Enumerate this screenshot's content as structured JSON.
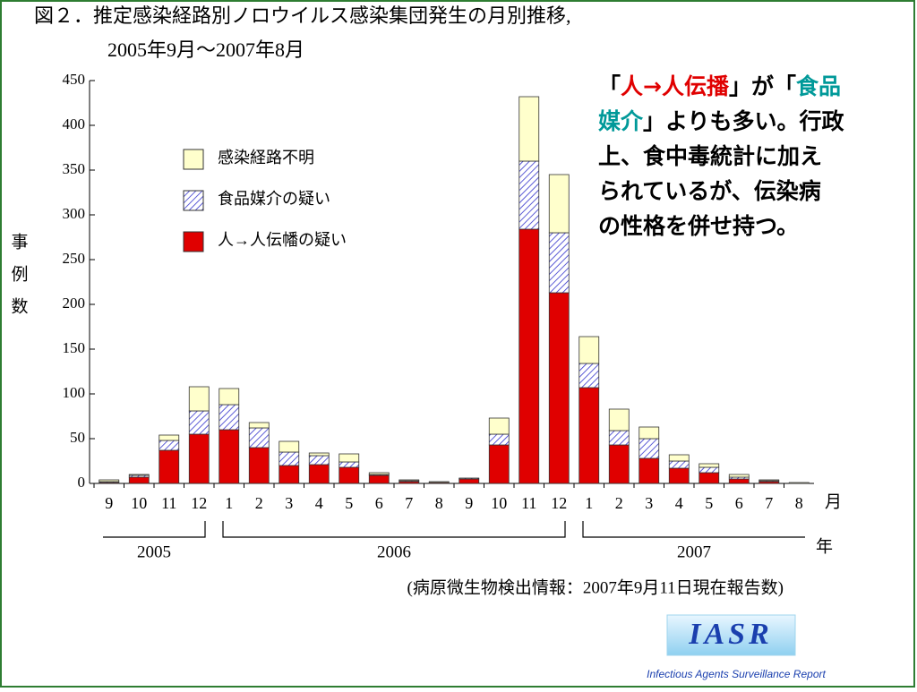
{
  "chart_data": {
    "type": "stacked_bar",
    "title": "図２．推定感染経路別ノロウイルス感染集団発生の月別推移,",
    "subtitle": "2005年9月～2007年8月",
    "y_label": "事例数",
    "x_unit": "月",
    "year_unit": "年",
    "years": [
      "2005",
      "2006",
      "2007"
    ],
    "source": "(病原微生物検出情報：2007年9月11日現在報告数)",
    "categories": [
      9,
      10,
      11,
      12,
      1,
      2,
      3,
      4,
      5,
      6,
      7,
      8,
      9,
      10,
      11,
      12,
      1,
      2,
      3,
      4,
      5,
      6,
      7,
      8
    ],
    "series": [
      {
        "name": "人→人伝幡の疑い",
        "color": "#e00000",
        "pattern": "solid",
        "values": [
          1,
          7,
          37,
          55,
          60,
          40,
          20,
          21,
          18,
          9,
          2,
          1,
          5,
          43,
          284,
          213,
          107,
          43,
          28,
          17,
          12,
          5,
          2,
          0
        ]
      },
      {
        "name": "食品媒介の疑い",
        "color": "#3333cc",
        "pattern": "hatch",
        "values": [
          1,
          2,
          11,
          26,
          28,
          22,
          15,
          10,
          6,
          1,
          1,
          0,
          1,
          12,
          76,
          67,
          27,
          16,
          22,
          8,
          6,
          2,
          1,
          0
        ]
      },
      {
        "name": "感染経路不明",
        "color": "#ffffcc",
        "pattern": "solid",
        "values": [
          2,
          1,
          6,
          27,
          18,
          6,
          12,
          3,
          9,
          2,
          1,
          1,
          0,
          18,
          72,
          65,
          30,
          24,
          13,
          7,
          4,
          3,
          1,
          1
        ]
      }
    ],
    "ylim": [
      0,
      450
    ],
    "yticks": [
      0,
      50,
      100,
      150,
      200,
      250,
      300,
      350,
      400,
      450
    ],
    "legend": "upper left",
    "annotation_lines": [
      [
        {
          "text": "「",
          "color": "#000000"
        },
        {
          "text": "人→人伝播",
          "color": "#e00000"
        },
        {
          "text": "」が「",
          "color": "#000000"
        },
        {
          "text": "食品",
          "color": "#009999"
        }
      ],
      [
        {
          "text": "媒介",
          "color": "#009999"
        },
        {
          "text": "」よりも多い。行政",
          "color": "#000000"
        }
      ],
      [
        {
          "text": "上、食中毒統計に加え",
          "color": "#000000"
        }
      ],
      [
        {
          "text": "られているが、伝染病",
          "color": "#000000"
        }
      ],
      [
        {
          "text": "の性格を併せ持つ。",
          "color": "#000000"
        }
      ]
    ],
    "logo": "IASR",
    "logo_caption": "Infectious Agents Surveillance Report"
  }
}
